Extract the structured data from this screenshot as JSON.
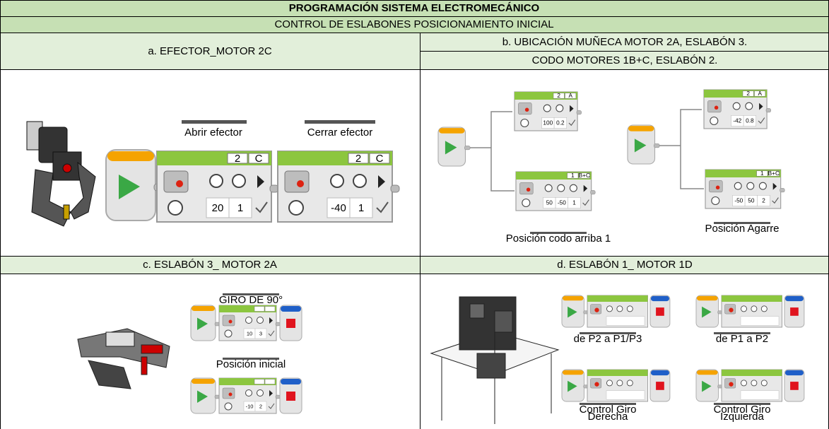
{
  "header": {
    "title": "PROGRAMACIÓN SISTEMA ELECTROMECÁNICO",
    "subtitle": "CONTROL DE ESLABONES POSICIONAMIENTO INICIAL"
  },
  "panels": {
    "a": {
      "caption": "a. EFECTOR_MOTOR 2C",
      "blocks": [
        {
          "label": "Abrir efector",
          "port": "2",
          "motor": "C",
          "params": [
            "20",
            "1"
          ]
        },
        {
          "label": "Cerrar efector",
          "port": "2",
          "motor": "C",
          "params": [
            "-40",
            "1"
          ]
        }
      ]
    },
    "b": {
      "caption": [
        "b. UBICACIÓN MUÑECA MOTOR 2A, ESLABÓN 3.",
        "CODO MOTORES 1B+C, ESLABÓN 2."
      ],
      "programs": [
        {
          "label": "Posición codo arriba 1",
          "blocks": [
            {
              "port": "2",
              "motor": "A",
              "params": [
                "100",
                "0.2"
              ]
            },
            {
              "port": "1",
              "motor": "B+C",
              "params": [
                "50",
                "-50",
                "1"
              ]
            }
          ]
        },
        {
          "label": "Posición Agarre",
          "blocks": [
            {
              "port": "2",
              "motor": "A",
              "params": [
                "-42",
                "0.8"
              ]
            },
            {
              "port": "1",
              "motor": "B+C",
              "params": [
                "-50",
                "50",
                "2"
              ]
            }
          ]
        }
      ]
    },
    "c": {
      "caption": "c. ESLABÓN 3_ MOTOR 2A",
      "programs": [
        {
          "label": "GIRO DE 90°",
          "params": [
            "10",
            "3"
          ]
        },
        {
          "label": "Posición inicial",
          "params": [
            "-10",
            "2"
          ]
        }
      ]
    },
    "d": {
      "caption": "d. ESLABÓN 1_ MOTOR 1D",
      "programs": [
        {
          "label": [
            "de P2 a P1/P3"
          ]
        },
        {
          "label": [
            "de P1 a P2"
          ]
        },
        {
          "label": [
            "Control Giro",
            "Derecha"
          ]
        },
        {
          "label": [
            "Control Giro",
            "Izquierda"
          ]
        }
      ]
    }
  }
}
